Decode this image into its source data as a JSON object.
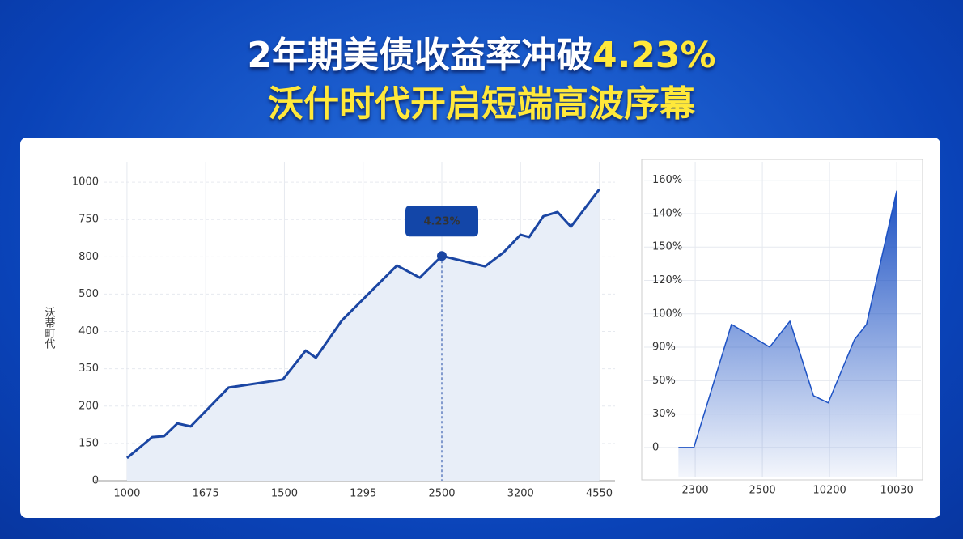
{
  "header": {
    "title_line1": "2年期美债收益率冲破",
    "title_highlight": "4.23%",
    "title_line2": "沃什时代开启短端高波序幕"
  },
  "chart_data": [
    {
      "type": "line",
      "ylabel": "沃蒂町代",
      "color": "#1b46a3",
      "fill": "#e8eef8",
      "grid": true,
      "x": [
        0,
        0.32,
        0.47,
        0.64,
        0.81,
        1.29,
        1.98,
        2.27,
        2.4,
        2.73,
        3.43,
        3.72,
        4.0,
        4.55,
        4.78,
        5.0,
        5.11,
        5.29,
        5.47,
        5.64,
        6.0
      ],
      "values": [
        76,
        146,
        149,
        192,
        182,
        312,
        339,
        436,
        412,
        537,
        721,
        680,
        753,
        718,
        764,
        824,
        816,
        886,
        900,
        851,
        976
      ],
      "xlim": [
        -0.4,
        6.2
      ],
      "ylim": [
        0,
        1068
      ],
      "xticks": [
        {
          "value": 0,
          "label": "1000"
        },
        {
          "value": 1,
          "label": "1675"
        },
        {
          "value": 2,
          "label": "1500"
        },
        {
          "value": 3,
          "label": "1295"
        },
        {
          "value": 4,
          "label": "2500"
        },
        {
          "value": 5,
          "label": "3200"
        },
        {
          "value": 6,
          "label": "4550"
        }
      ],
      "yticks": [
        0,
        {
          "value": 125,
          "label": "150"
        },
        {
          "value": 250,
          "label": "200"
        },
        {
          "value": 375,
          "label": "350"
        },
        {
          "value": 500,
          "label": "400"
        },
        {
          "value": 625,
          "label": "500"
        },
        {
          "value": 750,
          "label": "800"
        },
        {
          "value": 875,
          "label": "750"
        },
        1000
      ],
      "annotation": {
        "text": "4.23%",
        "x": 4.0,
        "y": 753
      }
    },
    {
      "type": "area",
      "color": "#1d52c4",
      "grid": true,
      "x": [
        -0.25,
        -0.02,
        0.54,
        1.11,
        1.41,
        1.76,
        1.98,
        2.37,
        2.55,
        3.0
      ],
      "values": [
        0,
        0,
        73.7,
        60.1,
        75.6,
        31,
        26.7,
        64.5,
        73.7,
        153.7
      ],
      "xlim": [
        -0.76,
        3.36
      ],
      "ylim": [
        -18,
        171
      ],
      "xticks": [
        {
          "value": 0,
          "label": "2300"
        },
        {
          "value": 1,
          "label": "2500"
        },
        {
          "value": 2,
          "label": "10200"
        },
        {
          "value": 3,
          "label": "10030"
        }
      ],
      "yticks": [
        0,
        {
          "value": 20,
          "label": "30%"
        },
        {
          "value": 40,
          "label": "50%"
        },
        {
          "value": 60,
          "label": "90%"
        },
        {
          "value": 80,
          "label": "100%"
        },
        {
          "value": 100,
          "label": "120%"
        },
        {
          "value": 120,
          "label": "150%"
        },
        {
          "value": 140,
          "label": "140%"
        },
        {
          "value": 160,
          "label": "160%"
        }
      ]
    }
  ]
}
